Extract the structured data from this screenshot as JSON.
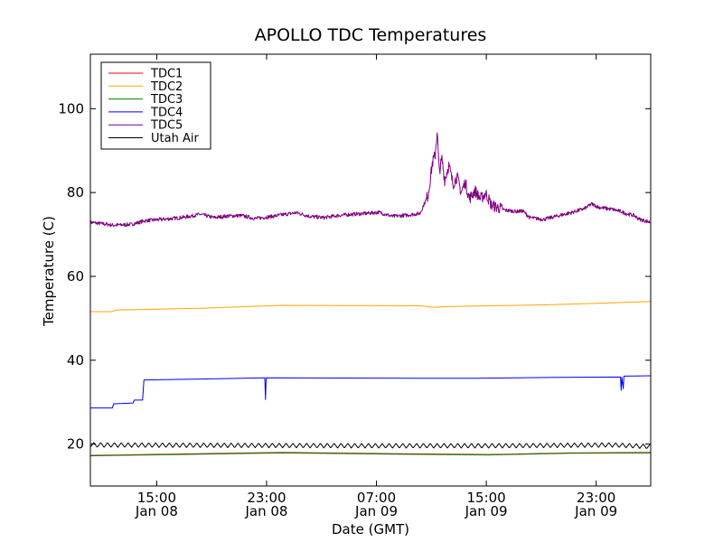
{
  "chart_data": {
    "type": "line",
    "title": "APOLLO TDC Temperatures",
    "xlabel": "Date (GMT)",
    "ylabel": "Temperature (C)",
    "xlim": [
      0,
      40.8
    ],
    "ylim": [
      10,
      113
    ],
    "x_unit": "hours since 2014-01-08 10:10 GMT",
    "x_ticks": [
      {
        "x": 4.83,
        "time": "15:00",
        "date": "Jan 08"
      },
      {
        "x": 12.83,
        "time": "23:00",
        "date": "Jan 08"
      },
      {
        "x": 20.83,
        "time": "07:00",
        "date": "Jan 09"
      },
      {
        "x": 28.83,
        "time": "15:00",
        "date": "Jan 09"
      },
      {
        "x": 36.83,
        "time": "23:00",
        "date": "Jan 09"
      }
    ],
    "y_ticks": [
      20,
      40,
      60,
      80,
      100
    ],
    "legend_position": "top-left",
    "series": [
      {
        "name": "TDC1",
        "color": "#ff0000",
        "points": [
          [
            0,
            17.3
          ],
          [
            6,
            17.6
          ],
          [
            14,
            18.0
          ],
          [
            22,
            17.7
          ],
          [
            29,
            17.5
          ],
          [
            35,
            17.9
          ],
          [
            40.8,
            18.0
          ]
        ]
      },
      {
        "name": "TDC2",
        "color": "#ffa500",
        "points": [
          [
            0,
            51.6
          ],
          [
            1.5,
            51.6
          ],
          [
            2,
            52.0
          ],
          [
            8,
            52.4
          ],
          [
            14,
            53.1
          ],
          [
            24,
            53.0
          ],
          [
            25,
            52.6
          ],
          [
            26,
            52.8
          ],
          [
            33,
            53.2
          ],
          [
            38,
            53.7
          ],
          [
            40.8,
            54.0
          ]
        ]
      },
      {
        "name": "TDC3",
        "color": "#008000",
        "points": [
          [
            0,
            17.2
          ],
          [
            6,
            17.5
          ],
          [
            14,
            17.9
          ],
          [
            22,
            17.6
          ],
          [
            29,
            17.4
          ],
          [
            35,
            17.8
          ],
          [
            40.8,
            17.9
          ]
        ]
      },
      {
        "name": "TDC4",
        "color": "#0000ff",
        "points": [
          [
            0,
            28.6
          ],
          [
            1.6,
            28.6
          ],
          [
            1.7,
            29.6
          ],
          [
            3.1,
            29.8
          ],
          [
            3.2,
            30.5
          ],
          [
            3.8,
            30.5
          ],
          [
            3.9,
            35.3
          ],
          [
            8,
            35.5
          ],
          [
            12.7,
            35.8
          ],
          [
            12.75,
            30.6
          ],
          [
            12.8,
            35.8
          ],
          [
            24,
            35.7
          ],
          [
            28,
            35.7
          ],
          [
            34,
            35.9
          ],
          [
            38.6,
            36.0
          ],
          [
            38.65,
            32.8
          ],
          [
            38.7,
            35.9
          ],
          [
            38.8,
            33.2
          ],
          [
            38.85,
            36.2
          ],
          [
            40.8,
            36.3
          ]
        ]
      },
      {
        "name": "TDC5",
        "color": "#800080",
        "points": [
          [
            0,
            72.9
          ],
          [
            1,
            72.5
          ],
          [
            1.7,
            72.2
          ],
          [
            3,
            72.4
          ],
          [
            4,
            73.3
          ],
          [
            6,
            73.8
          ],
          [
            7,
            74.2
          ],
          [
            8,
            74.8
          ],
          [
            9,
            74.0
          ],
          [
            10,
            74.4
          ],
          [
            11,
            74.5
          ],
          [
            12,
            73.8
          ],
          [
            13,
            74.2
          ],
          [
            14,
            74.7
          ],
          [
            15,
            75.2
          ],
          [
            16,
            74.3
          ],
          [
            17,
            74.0
          ],
          [
            18,
            74.5
          ],
          [
            19,
            74.8
          ],
          [
            20,
            75.0
          ],
          [
            21,
            75.3
          ],
          [
            22,
            74.3
          ],
          [
            23,
            74.6
          ],
          [
            24,
            75.0
          ],
          [
            24.6,
            79.5
          ],
          [
            24.9,
            87.0
          ],
          [
            25.1,
            89.0
          ],
          [
            25.25,
            94.5
          ],
          [
            25.4,
            85.0
          ],
          [
            25.6,
            88.0
          ],
          [
            25.8,
            83.0
          ],
          [
            26.1,
            86.5
          ],
          [
            26.4,
            82.0
          ],
          [
            26.7,
            83.8
          ],
          [
            27.0,
            80.0
          ],
          [
            27.3,
            82.5
          ],
          [
            27.6,
            78.5
          ],
          [
            28.0,
            80.5
          ],
          [
            28.4,
            78.5
          ],
          [
            28.8,
            79.8
          ],
          [
            29.2,
            77.0
          ],
          [
            29.6,
            76.5
          ],
          [
            30.2,
            75.8
          ],
          [
            31,
            75.5
          ],
          [
            31.5,
            75.6
          ],
          [
            32,
            74.0
          ],
          [
            33,
            73.6
          ],
          [
            34,
            74.4
          ],
          [
            35,
            75.2
          ],
          [
            36,
            76.2
          ],
          [
            36.5,
            77.3
          ],
          [
            37,
            76.5
          ],
          [
            38,
            76.0
          ],
          [
            38.6,
            75.5
          ],
          [
            39,
            75.0
          ],
          [
            39.6,
            74.5
          ],
          [
            40,
            73.6
          ],
          [
            40.8,
            72.9
          ]
        ]
      },
      {
        "name": "Utah Air",
        "color": "#000000",
        "sawtooth": true,
        "amplitude": 0.55,
        "period": 0.5,
        "points": [
          [
            0,
            19.8
          ],
          [
            10,
            19.7
          ],
          [
            20,
            19.6
          ],
          [
            30,
            19.6
          ],
          [
            38,
            19.8
          ],
          [
            40.8,
            19.4
          ]
        ]
      }
    ]
  }
}
